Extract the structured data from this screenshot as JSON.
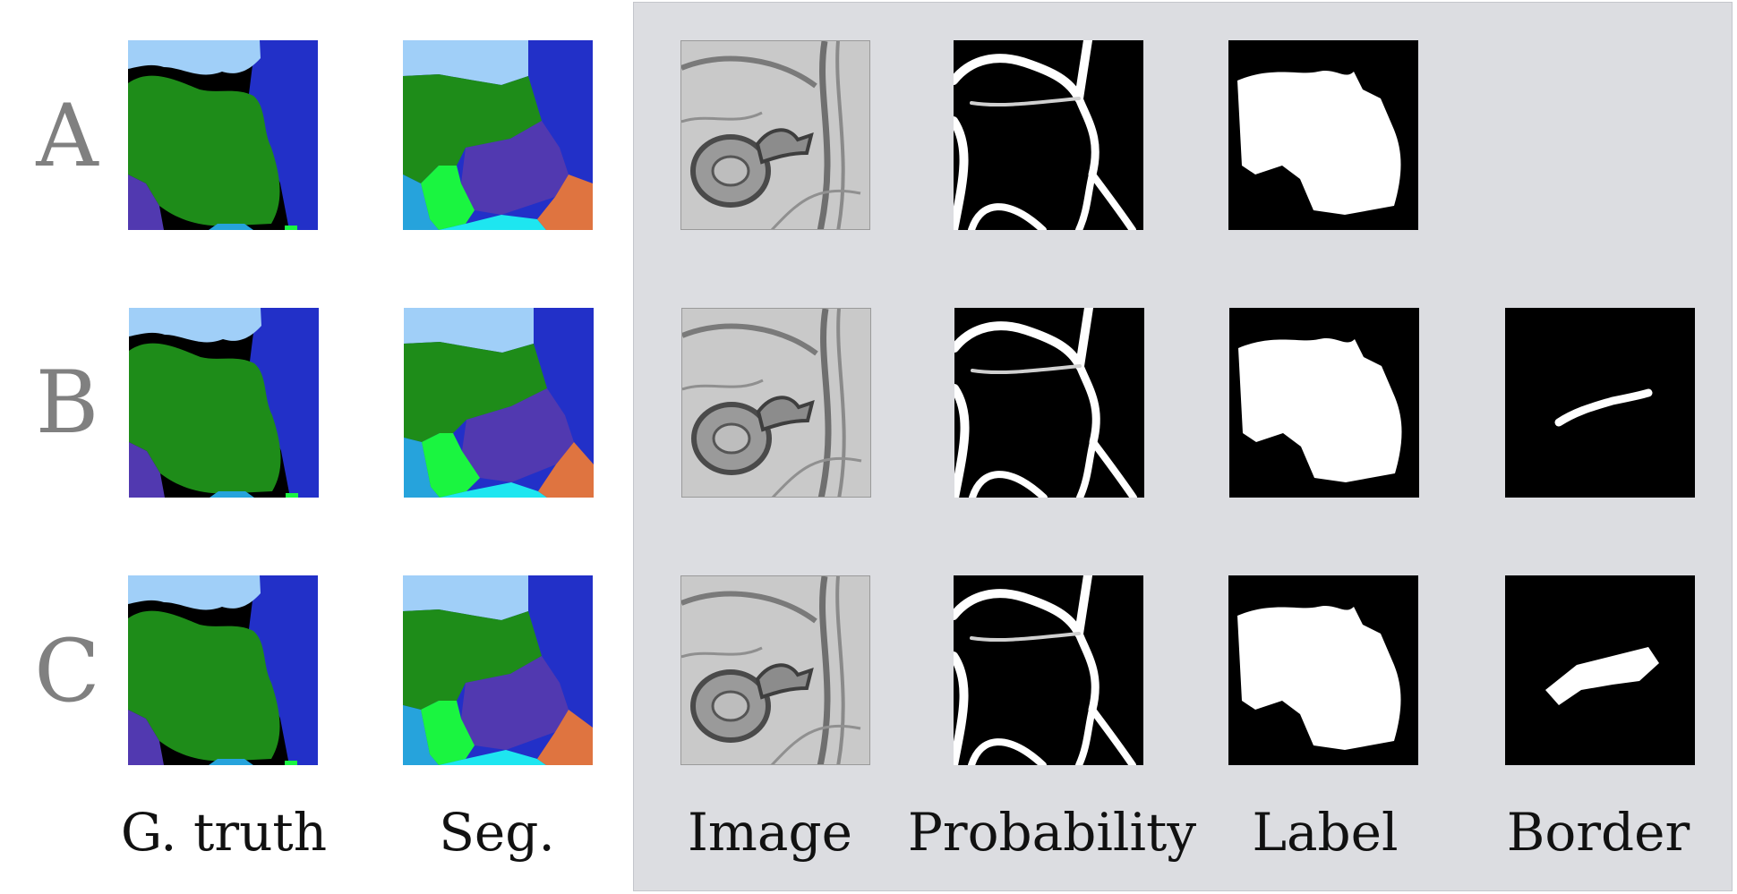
{
  "figure": {
    "rows": [
      {
        "letter": "A"
      },
      {
        "letter": "B"
      },
      {
        "letter": "C"
      }
    ],
    "columns": {
      "gtruth": "G. truth",
      "seg": "Seg.",
      "image": "Image",
      "probability": "Probability",
      "label": "Label",
      "border": "Border"
    },
    "colors": {
      "light_blue": "#a0cff8",
      "dark_blue": "#2230c8",
      "green": "#1e8c19",
      "purple": "#5139b0",
      "cyan": "#26a3dc",
      "bright_green": "#1af540",
      "aqua": "#1ee6f0",
      "orange": "#df7440",
      "panel_background": "#dcdde1",
      "row_letter": "#808080"
    }
  }
}
